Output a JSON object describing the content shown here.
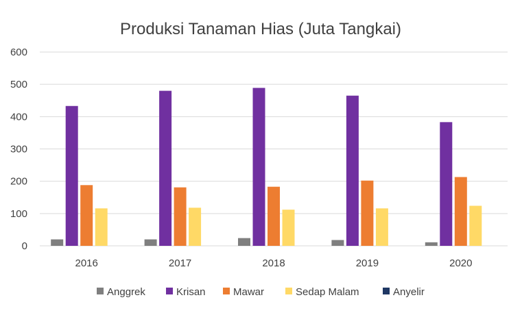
{
  "chart_data": {
    "type": "bar",
    "title": "Produksi Tanaman Hias (Juta Tangkai)",
    "xlabel": "",
    "ylabel": "",
    "categories": [
      "2016",
      "2017",
      "2018",
      "2019",
      "2020"
    ],
    "ylim": [
      0,
      600
    ],
    "yticks": [
      0,
      100,
      200,
      300,
      400,
      500,
      600
    ],
    "ytick_labels": [
      "0",
      "100",
      "200",
      "300",
      "400",
      "500",
      "600"
    ],
    "grid": true,
    "legend_position": "bottom",
    "series": [
      {
        "name": "Anggrek",
        "color": "#7f7f7f",
        "values": [
          20,
          20,
          24,
          18,
          11
        ]
      },
      {
        "name": "Krisan",
        "color": "#7030a0",
        "values": [
          433,
          480,
          489,
          465,
          383
        ]
      },
      {
        "name": "Mawar",
        "color": "#ed7d31",
        "values": [
          188,
          181,
          183,
          202,
          213
        ]
      },
      {
        "name": "Sedap Malam",
        "color": "#ffd966",
        "values": [
          116,
          118,
          112,
          116,
          124
        ]
      },
      {
        "name": "Anyelir",
        "color": "#1f3864",
        "values": [
          0,
          0,
          0,
          0,
          0
        ]
      }
    ]
  }
}
